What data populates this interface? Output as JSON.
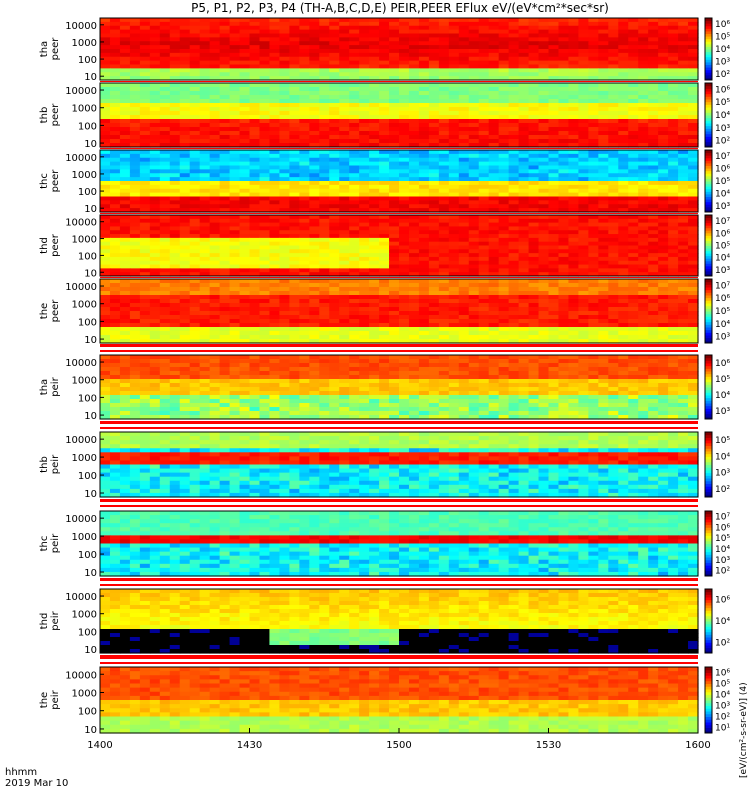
{
  "title": "P5, P1, P2, P3, P4 (TH-A,B,C,D,E) PEIR,PEER EFlux eV/(eV*cm²*sec*sr)",
  "bottom_labels": {
    "line1": "hhmm",
    "line2": "2019 Mar 10"
  },
  "colorbar_unit": "[eV/(cm²-s-sr-eV)] (4)",
  "colors": {
    "frame": "#000000",
    "background": "#ffffff"
  },
  "chart_data": [
    {
      "type": "heatmap",
      "probe": "tha",
      "species": "peer",
      "ylabel": [
        "tha",
        "peer"
      ],
      "yscale": "log",
      "yticks": [
        "10",
        "100",
        "1000",
        "10000"
      ],
      "colorbar_ticks": [
        "10²",
        "10³",
        "10⁴",
        "10⁵",
        "10⁶"
      ]
    },
    {
      "type": "heatmap",
      "probe": "thb",
      "species": "peer",
      "ylabel": [
        "thb",
        "peer"
      ],
      "yscale": "log",
      "yticks": [
        "10",
        "100",
        "1000",
        "10000"
      ],
      "colorbar_ticks": [
        "10²",
        "10³",
        "10⁴",
        "10⁵",
        "10⁶"
      ]
    },
    {
      "type": "heatmap",
      "probe": "thc",
      "species": "peer",
      "ylabel": [
        "thc",
        "peer"
      ],
      "yscale": "log",
      "yticks": [
        "10",
        "100",
        "1000",
        "10000"
      ],
      "colorbar_ticks": [
        "10³",
        "10⁴",
        "10⁵",
        "10⁶",
        "10⁷"
      ]
    },
    {
      "type": "heatmap",
      "probe": "thd",
      "species": "peer",
      "ylabel": [
        "thd",
        "peer"
      ],
      "yscale": "log",
      "yticks": [
        "10",
        "100",
        "1000",
        "10000"
      ],
      "colorbar_ticks": [
        "10³",
        "10⁴",
        "10⁵",
        "10⁶",
        "10⁷"
      ]
    },
    {
      "type": "heatmap",
      "probe": "the",
      "species": "peer",
      "ylabel": [
        "the",
        "peer"
      ],
      "yscale": "log",
      "yticks": [
        "10",
        "100",
        "1000",
        "10000"
      ],
      "colorbar_ticks": [
        "10³",
        "10⁴",
        "10⁵",
        "10⁶",
        "10⁷"
      ]
    },
    {
      "type": "heatmap",
      "probe": "tha",
      "species": "peir",
      "ylabel": [
        "tha",
        "peir"
      ],
      "yscale": "log",
      "yticks": [
        "10",
        "100",
        "1000",
        "10000"
      ],
      "colorbar_ticks": [
        "10³",
        "10⁴",
        "10⁵",
        "10⁶"
      ]
    },
    {
      "type": "heatmap",
      "probe": "thb",
      "species": "peir",
      "ylabel": [
        "thb",
        "peir"
      ],
      "yscale": "log",
      "yticks": [
        "10",
        "100",
        "1000",
        "10000"
      ],
      "colorbar_ticks": [
        "10²",
        "10³",
        "10⁴",
        "10⁵"
      ]
    },
    {
      "type": "heatmap",
      "probe": "thc",
      "species": "peir",
      "ylabel": [
        "thc",
        "peir"
      ],
      "yscale": "log",
      "yticks": [
        "10",
        "100",
        "1000",
        "10000"
      ],
      "colorbar_ticks": [
        "10²",
        "10³",
        "10⁴",
        "10⁵",
        "10⁶",
        "10⁷"
      ]
    },
    {
      "type": "heatmap",
      "probe": "thd",
      "species": "peir",
      "ylabel": [
        "thd",
        "peir"
      ],
      "yscale": "log",
      "yticks": [
        "10",
        "100",
        "1000",
        "10000"
      ],
      "colorbar_ticks": [
        "10²",
        "10⁴",
        "10⁶"
      ]
    },
    {
      "type": "heatmap",
      "probe": "the",
      "species": "peir",
      "ylabel": [
        "the",
        "peir"
      ],
      "yscale": "log",
      "yticks": [
        "10",
        "100",
        "1000",
        "10000"
      ],
      "colorbar_ticks": [
        "10¹",
        "10²",
        "10³",
        "10⁴",
        "10⁵",
        "10⁶"
      ]
    }
  ],
  "x_axis": {
    "ticks": [
      "1400",
      "1430",
      "1500",
      "1530",
      "1600"
    ],
    "xlim": [
      "1400",
      "1600"
    ]
  }
}
